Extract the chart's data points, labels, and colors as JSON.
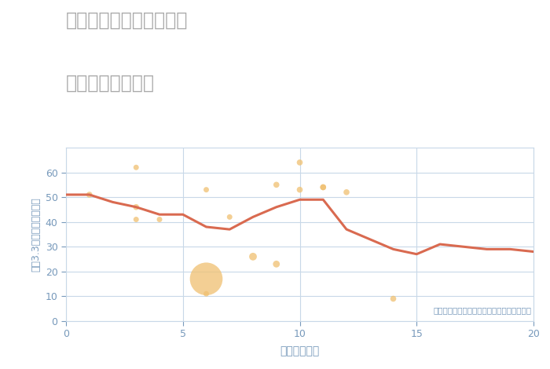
{
  "title_line1": "愛知県みよし市黒笹町の",
  "title_line2": "駅距離別土地価格",
  "xlabel": "駅距離（分）",
  "ylabel": "坪（3.3㎡）単価（万円）",
  "annotation": "円の大きさは、取引のあった物件面積を示す",
  "background_color": "#ffffff",
  "plot_bg_color": "#ffffff",
  "grid_color": "#c8d8e8",
  "title_color": "#aaaaaa",
  "tick_color": "#7799bb",
  "label_color": "#7799bb",
  "line_color": "#d96a50",
  "scatter_color": "#f0c070",
  "scatter_alpha": 0.75,
  "line_width": 2.2,
  "xlim": [
    0,
    20
  ],
  "ylim": [
    0,
    70
  ],
  "xticks": [
    0,
    5,
    10,
    15,
    20
  ],
  "yticks": [
    0,
    10,
    20,
    30,
    40,
    50,
    60
  ],
  "line_x": [
    0,
    1,
    2,
    3,
    4,
    5,
    6,
    7,
    8,
    9,
    10,
    11,
    12,
    13,
    14,
    15,
    16,
    17,
    18,
    19,
    20
  ],
  "line_y": [
    51,
    51,
    48,
    46,
    43,
    43,
    38,
    37,
    42,
    46,
    49,
    49,
    37,
    33,
    29,
    27,
    31,
    30,
    29,
    29,
    28
  ],
  "scatter_x": [
    1,
    3,
    3,
    3,
    4,
    6,
    6,
    6,
    7,
    8,
    9,
    9,
    10,
    10,
    11,
    11,
    12,
    14
  ],
  "scatter_y": [
    51,
    62,
    46,
    41,
    41,
    17,
    11,
    53,
    42,
    26,
    55,
    23,
    64,
    53,
    54,
    54,
    52,
    9
  ],
  "scatter_size": [
    30,
    25,
    30,
    25,
    25,
    900,
    25,
    25,
    25,
    50,
    30,
    40,
    30,
    30,
    30,
    30,
    30,
    30
  ]
}
